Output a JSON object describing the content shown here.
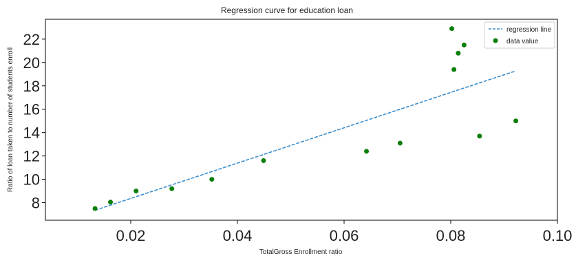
{
  "chart_data": {
    "type": "scatter",
    "title": "Regression curve for education loan",
    "xlabel": "TotalGross Enrollment ratio",
    "ylabel": "Ratio of loan taken to number of students enroll",
    "xlim": [
      0.004,
      0.1
    ],
    "ylim": [
      6.5,
      23.7
    ],
    "xticks": [
      0.02,
      0.04,
      0.06,
      0.08,
      0.1
    ],
    "xtick_labels": [
      "0.02",
      "0.04",
      "0.06",
      "0.08",
      "0.10"
    ],
    "yticks": [
      8,
      10,
      12,
      14,
      16,
      18,
      20,
      22
    ],
    "ytick_labels": [
      "8",
      "10",
      "12",
      "14",
      "16",
      "18",
      "20",
      "22"
    ],
    "grid": false,
    "legend_position": "top-right",
    "series": [
      {
        "name": "regression line",
        "kind": "line",
        "style": "dashed",
        "color": "#3b8fd0",
        "x": [
          0.0133,
          0.092
        ],
        "y": [
          7.35,
          19.25
        ]
      },
      {
        "name": "data value",
        "kind": "scatter",
        "color": "#0a7f0a",
        "x": [
          0.0133,
          0.0162,
          0.021,
          0.0277,
          0.0352,
          0.0449,
          0.0642,
          0.0705,
          0.0802,
          0.0806,
          0.0814,
          0.0825,
          0.0854,
          0.0922
        ],
        "y": [
          7.5,
          8.05,
          9.0,
          9.2,
          10.0,
          11.6,
          12.4,
          13.1,
          22.9,
          19.4,
          20.8,
          21.5,
          13.7,
          15.0
        ]
      }
    ]
  }
}
